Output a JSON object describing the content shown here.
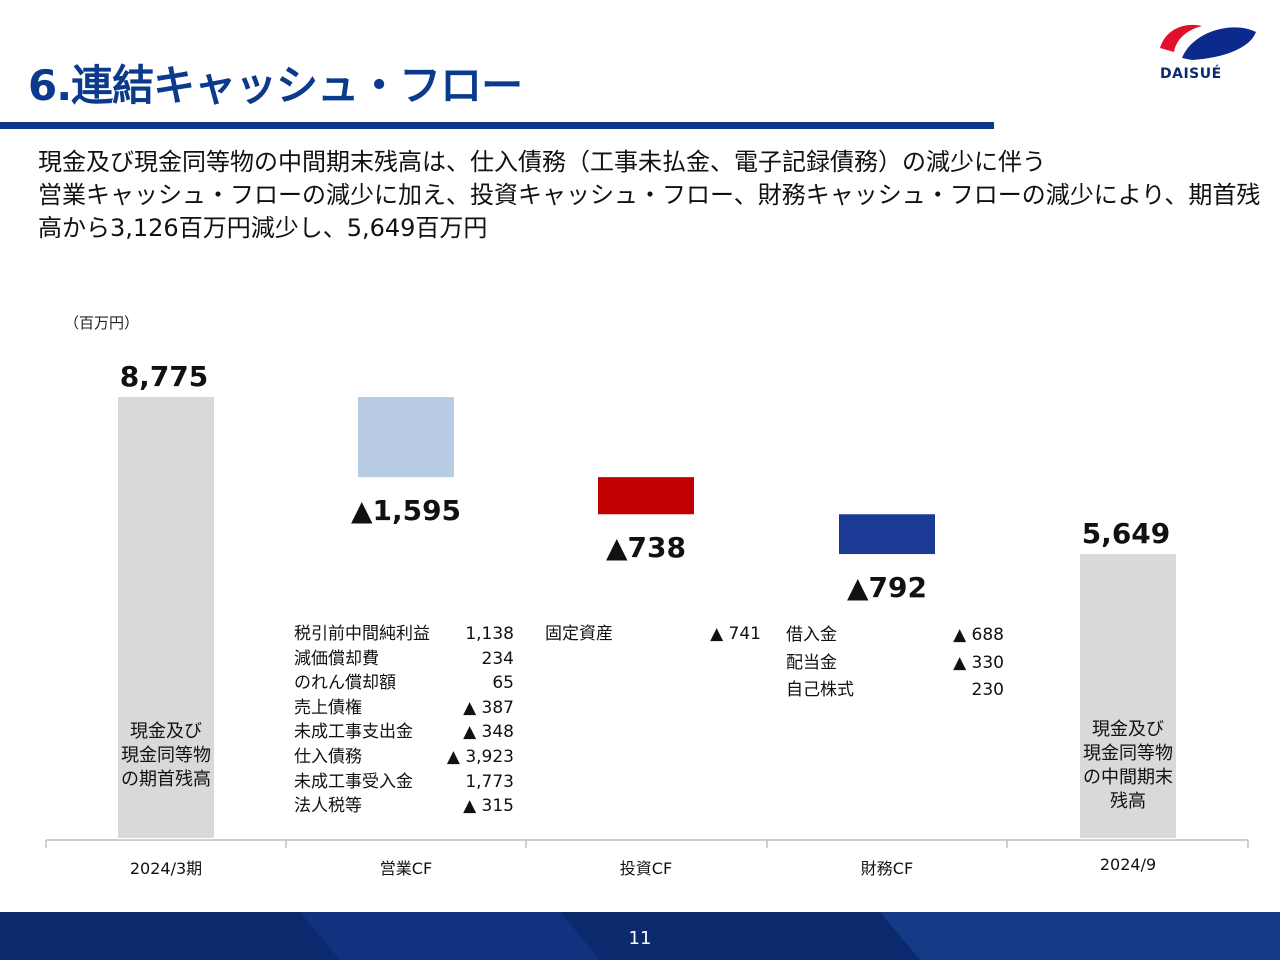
{
  "title": "6.連結キャッシュ・フロー",
  "logo": {
    "text": "DAISUÉ"
  },
  "summary": {
    "line1": "現金及び現金同等物の中間期末残高は、仕入債務（工事未払金、電子記録債務）の減少に伴う",
    "line2": "営業キャッシュ・フローの減少に加え、投資キャッシュ・フロー、財務キャッシュ・フローの減少により、期首残",
    "line3": "高から3,126百万円減少し、5,649百万円"
  },
  "unit_label": "（百万円）",
  "colors": {
    "title": "#0b3a8c",
    "total_bar": "#d9d9d9",
    "operating": "#b8cce4",
    "investing": "#c00000",
    "financing": "#1a3a96",
    "footer": "#0b2a6e"
  },
  "chart_data": {
    "type": "waterfall",
    "unit": "百万円",
    "ylim": [
      0,
      8775
    ],
    "categories": [
      "2024/3期",
      "営業CF",
      "投資CF",
      "財務CF",
      "2024/9"
    ],
    "steps": [
      {
        "category": "2024/3期",
        "kind": "total",
        "value": 8775,
        "label": "8,775",
        "inner_label": [
          "現金及び",
          "現金同等物",
          "の期首残高"
        ]
      },
      {
        "category": "営業CF",
        "kind": "delta",
        "value": -1595,
        "label": "▲1,595"
      },
      {
        "category": "投資CF",
        "kind": "delta",
        "value": -738,
        "label": "▲738"
      },
      {
        "category": "財務CF",
        "kind": "delta",
        "value": -792,
        "label": "▲792"
      },
      {
        "category": "2024/9",
        "kind": "total",
        "value": 5649,
        "label": "5,649",
        "inner_label": [
          "現金及び",
          "現金同等物",
          "の中間期末",
          "残高"
        ]
      }
    ]
  },
  "breakdowns": {
    "operating": [
      {
        "label": "税引前中間純利益",
        "value": "1,138"
      },
      {
        "label": "減価償却費",
        "value": "234"
      },
      {
        "label": "のれん償却額",
        "value": "65"
      },
      {
        "label": "売上債権",
        "value": "▲ 387"
      },
      {
        "label": "未成工事支出金",
        "value": "▲ 348"
      },
      {
        "label": "仕入債務",
        "value": "▲ 3,923"
      },
      {
        "label": "未成工事受入金",
        "value": "1,773"
      },
      {
        "label": "法人税等",
        "value": "▲ 315"
      }
    ],
    "investing": [
      {
        "label": "固定資産",
        "value": "▲ 741"
      }
    ],
    "financing": [
      {
        "label": "借入金",
        "value": "▲ 688"
      },
      {
        "label": "配当金",
        "value": "▲ 330"
      },
      {
        "label": "自己株式",
        "value": "230"
      }
    ]
  },
  "page_number": "11"
}
